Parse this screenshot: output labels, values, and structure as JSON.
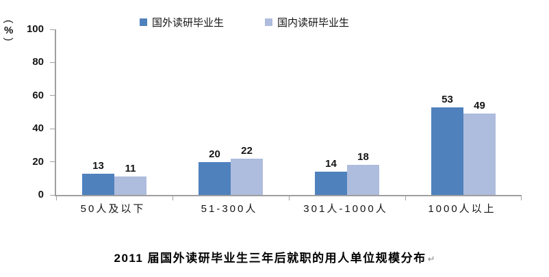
{
  "chart_data": {
    "type": "bar",
    "title": "2011 届国外读研毕业生三年后就职的用人单位规模分布",
    "y_axis_unit": "(%)",
    "categories": [
      "50人及以下",
      "51-300人",
      "301人-1000人",
      "1000人以上"
    ],
    "series": [
      {
        "name": "国外读研毕业生",
        "color": "#4f81bd",
        "values": [
          13,
          20,
          14,
          53
        ]
      },
      {
        "name": "国内读研毕业生",
        "color": "#aebcdd",
        "values": [
          11,
          22,
          18,
          49
        ]
      }
    ],
    "ylim": [
      0,
      100
    ],
    "yticks": [
      0,
      20,
      40,
      60,
      80,
      100
    ],
    "grid": false,
    "legend_position": "top-center",
    "value_labels_shown": true
  },
  "paragraph_mark": "↵",
  "colors": {
    "axis": "#9e9e9e",
    "text": "#141414",
    "title": "#000000",
    "paragraph_mark": "#8c8c8c"
  }
}
